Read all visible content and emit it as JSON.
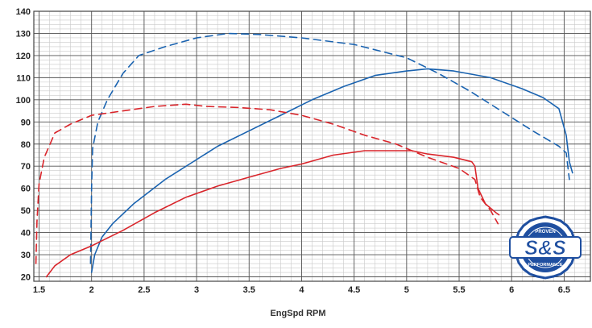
{
  "chart_data": {
    "type": "line",
    "title": "",
    "xlabel": "EngSpd RPM",
    "ylabel": "",
    "xlim": [
      1.45,
      6.75
    ],
    "ylim": [
      18,
      140
    ],
    "x_ticks": [
      "1.5",
      "2",
      "2.5",
      "3",
      "3.5",
      "4",
      "4.5",
      "5",
      "5.5",
      "6",
      "6.5"
    ],
    "y_ticks": [
      "20",
      "30",
      "40",
      "50",
      "60",
      "70",
      "80",
      "90",
      "100",
      "110",
      "120",
      "130",
      "140"
    ],
    "grid": true,
    "legend": "none",
    "series": [
      {
        "color": "#1a63b0",
        "style": "dashed",
        "points": [
          [
            1.99,
            26
          ],
          [
            2.0,
            60
          ],
          [
            2.01,
            78
          ],
          [
            2.06,
            90
          ],
          [
            2.15,
            100
          ],
          [
            2.3,
            112
          ],
          [
            2.45,
            120
          ],
          [
            2.7,
            124
          ],
          [
            3.0,
            128
          ],
          [
            3.3,
            130
          ],
          [
            3.6,
            129.5
          ],
          [
            4.0,
            128
          ],
          [
            4.5,
            125
          ],
          [
            5.0,
            119
          ],
          [
            5.3,
            112
          ],
          [
            5.6,
            104
          ],
          [
            5.9,
            95
          ],
          [
            6.2,
            86
          ],
          [
            6.45,
            79
          ],
          [
            6.52,
            76
          ],
          [
            6.55,
            64
          ]
        ]
      },
      {
        "color": "#1a63b0",
        "style": "solid",
        "points": [
          [
            2.0,
            22
          ],
          [
            2.03,
            30
          ],
          [
            2.1,
            38
          ],
          [
            2.2,
            44
          ],
          [
            2.4,
            53
          ],
          [
            2.7,
            64
          ],
          [
            3.0,
            73
          ],
          [
            3.2,
            79
          ],
          [
            3.5,
            86
          ],
          [
            3.8,
            93
          ],
          [
            4.1,
            100
          ],
          [
            4.4,
            106
          ],
          [
            4.7,
            111
          ],
          [
            5.0,
            113
          ],
          [
            5.2,
            114
          ],
          [
            5.45,
            113
          ],
          [
            5.8,
            110
          ],
          [
            6.1,
            105
          ],
          [
            6.3,
            101
          ],
          [
            6.45,
            96
          ],
          [
            6.52,
            84
          ],
          [
            6.55,
            72
          ],
          [
            6.58,
            67
          ]
        ]
      },
      {
        "color": "#d9252b",
        "style": "dashed",
        "points": [
          [
            1.47,
            26
          ],
          [
            1.48,
            45
          ],
          [
            1.5,
            62
          ],
          [
            1.55,
            74
          ],
          [
            1.65,
            85
          ],
          [
            1.8,
            89
          ],
          [
            2.0,
            93
          ],
          [
            2.3,
            95
          ],
          [
            2.6,
            97
          ],
          [
            2.9,
            98
          ],
          [
            3.1,
            97
          ],
          [
            3.4,
            96.5
          ],
          [
            3.7,
            95.5
          ],
          [
            4.0,
            93
          ],
          [
            4.3,
            89
          ],
          [
            4.6,
            84
          ],
          [
            4.9,
            80
          ],
          [
            5.2,
            74
          ],
          [
            5.5,
            69
          ],
          [
            5.65,
            64
          ],
          [
            5.7,
            56
          ],
          [
            5.8,
            50
          ],
          [
            5.87,
            44
          ]
        ]
      },
      {
        "color": "#d9252b",
        "style": "solid",
        "points": [
          [
            1.57,
            20
          ],
          [
            1.65,
            25
          ],
          [
            1.8,
            30
          ],
          [
            2.0,
            34
          ],
          [
            2.3,
            41
          ],
          [
            2.6,
            49
          ],
          [
            2.9,
            56
          ],
          [
            3.2,
            61
          ],
          [
            3.5,
            65
          ],
          [
            3.8,
            69
          ],
          [
            4.0,
            71
          ],
          [
            4.3,
            75
          ],
          [
            4.6,
            77
          ],
          [
            4.9,
            77
          ],
          [
            5.05,
            77
          ],
          [
            5.2,
            75.5
          ],
          [
            5.45,
            74
          ],
          [
            5.62,
            72
          ],
          [
            5.65,
            70
          ],
          [
            5.68,
            60
          ],
          [
            5.75,
            53
          ],
          [
            5.85,
            49
          ],
          [
            5.88,
            48
          ]
        ]
      }
    ]
  },
  "logo": {
    "text": "S&S",
    "top_arc": "PROVEN",
    "bottom_arc": "PERFORMANCE",
    "color": "#1f4fa0"
  }
}
